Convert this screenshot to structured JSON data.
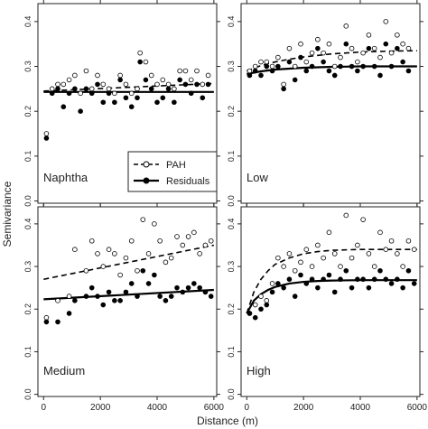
{
  "chart_data": {
    "type": "scatter",
    "xlabel": "Distance (m)",
    "ylabel": "Semivariance",
    "xlim": [
      -200,
      6100
    ],
    "ylim": [
      -0.005,
      0.44
    ],
    "x_ticks": [
      0,
      2000,
      4000,
      6000
    ],
    "y_ticks": [
      0.0,
      0.1,
      0.2,
      0.3,
      0.4
    ],
    "legend": {
      "placement": "inside Naphtha panel, top-right",
      "entries": [
        {
          "label": "PAH",
          "marker": "open-circle",
          "line": "dashed"
        },
        {
          "label": "Residuals",
          "marker": "filled-circle",
          "line": "solid"
        }
      ]
    },
    "panels": [
      {
        "label": "Naphtha",
        "series": [
          {
            "name": "PAH",
            "x": [
              100,
              300,
              500,
              700,
              900,
              1100,
              1300,
              1500,
              1700,
              1900,
              2100,
              2300,
              2500,
              2700,
              2900,
              3100,
              3300,
              3400,
              3600,
              3800,
              4000,
              4200,
              4400,
              4600,
              4800,
              5000,
              5200,
              5400,
              5600,
              5800
            ],
            "y": [
              0.15,
              0.25,
              0.26,
              0.26,
              0.27,
              0.28,
              0.24,
              0.29,
              0.25,
              0.28,
              0.26,
              0.25,
              0.24,
              0.28,
              0.26,
              0.24,
              0.25,
              0.33,
              0.31,
              0.28,
              0.26,
              0.27,
              0.26,
              0.25,
              0.29,
              0.29,
              0.27,
              0.29,
              0.26,
              0.28
            ]
          },
          {
            "name": "Residuals",
            "x": [
              100,
              300,
              500,
              700,
              900,
              1100,
              1300,
              1500,
              1700,
              1900,
              2100,
              2300,
              2500,
              2700,
              2900,
              3100,
              3300,
              3400,
              3600,
              3800,
              4000,
              4200,
              4400,
              4600,
              4800,
              5000,
              5200,
              5400,
              5600,
              5800
            ],
            "y": [
              0.14,
              0.24,
              0.25,
              0.21,
              0.24,
              0.25,
              0.2,
              0.25,
              0.24,
              0.26,
              0.22,
              0.24,
              0.22,
              0.27,
              0.23,
              0.21,
              0.23,
              0.31,
              0.27,
              0.25,
              0.22,
              0.23,
              0.25,
              0.22,
              0.27,
              0.26,
              0.24,
              0.26,
              0.23,
              0.26
            ]
          }
        ],
        "fits": {
          "PAH": {
            "x": [
              0,
              6000
            ],
            "y": [
              0.245,
              0.262
            ],
            "style": "dashed"
          },
          "Residuals": {
            "x": [
              0,
              6000
            ],
            "y": [
              0.243,
              0.243
            ],
            "style": "solid"
          }
        }
      },
      {
        "label": "Low",
        "series": [
          {
            "name": "PAH",
            "x": [
              100,
              300,
              500,
              700,
              900,
              1100,
              1300,
              1500,
              1700,
              1900,
              2100,
              2300,
              2500,
              2700,
              2900,
              3100,
              3300,
              3500,
              3700,
              3900,
              4100,
              4300,
              4500,
              4700,
              4900,
              5100,
              5300,
              5500,
              5700
            ],
            "y": [
              0.29,
              0.3,
              0.31,
              0.31,
              0.3,
              0.32,
              0.26,
              0.34,
              0.3,
              0.35,
              0.31,
              0.33,
              0.36,
              0.33,
              0.35,
              0.3,
              0.32,
              0.39,
              0.34,
              0.31,
              0.33,
              0.37,
              0.34,
              0.32,
              0.4,
              0.33,
              0.37,
              0.35,
              0.34
            ]
          },
          {
            "name": "Residuals",
            "x": [
              100,
              300,
              500,
              700,
              900,
              1100,
              1300,
              1500,
              1700,
              1900,
              2100,
              2300,
              2500,
              2700,
              2900,
              3100,
              3300,
              3500,
              3700,
              3900,
              4100,
              4300,
              4500,
              4700,
              4900,
              5100,
              5300,
              5500,
              5700
            ],
            "y": [
              0.28,
              0.29,
              0.28,
              0.3,
              0.29,
              0.3,
              0.25,
              0.31,
              0.27,
              0.32,
              0.29,
              0.3,
              0.34,
              0.31,
              0.29,
              0.28,
              0.3,
              0.35,
              0.3,
              0.29,
              0.3,
              0.34,
              0.3,
              0.28,
              0.35,
              0.3,
              0.34,
              0.31,
              0.29
            ]
          }
        ],
        "fits": {
          "PAH": {
            "x": [
              0,
              500,
              1000,
              1500,
              2000,
              3000,
              4000,
              5000,
              6000
            ],
            "y": [
              0.29,
              0.302,
              0.31,
              0.316,
              0.321,
              0.328,
              0.332,
              0.334,
              0.335
            ],
            "style": "dashed"
          },
          "Residuals": {
            "x": [
              0,
              500,
              1000,
              1500,
              2000,
              3000,
              4000,
              5000,
              6000
            ],
            "y": [
              0.283,
              0.289,
              0.293,
              0.295,
              0.297,
              0.299,
              0.3,
              0.3,
              0.3
            ],
            "style": "solid"
          }
        }
      },
      {
        "label": "Medium",
        "series": [
          {
            "name": "PAH",
            "x": [
              100,
              500,
              900,
              1100,
              1500,
              1700,
              1900,
              2100,
              2300,
              2500,
              2700,
              2900,
              3100,
              3300,
              3500,
              3700,
              3900,
              4100,
              4300,
              4500,
              4700,
              4900,
              5100,
              5300,
              5500,
              5700,
              5900
            ],
            "y": [
              0.18,
              0.22,
              0.23,
              0.34,
              0.29,
              0.36,
              0.33,
              0.3,
              0.34,
              0.33,
              0.28,
              0.32,
              0.36,
              0.29,
              0.41,
              0.33,
              0.4,
              0.36,
              0.31,
              0.32,
              0.37,
              0.35,
              0.37,
              0.38,
              0.33,
              0.35,
              0.36
            ]
          },
          {
            "name": "Residuals",
            "x": [
              100,
              500,
              900,
              1100,
              1500,
              1700,
              1900,
              2100,
              2300,
              2500,
              2700,
              2900,
              3100,
              3300,
              3500,
              3700,
              3900,
              4100,
              4300,
              4500,
              4700,
              4900,
              5100,
              5300,
              5500,
              5700,
              5900
            ],
            "y": [
              0.17,
              0.17,
              0.19,
              0.22,
              0.23,
              0.25,
              0.23,
              0.21,
              0.24,
              0.22,
              0.22,
              0.24,
              0.26,
              0.23,
              0.29,
              0.26,
              0.28,
              0.23,
              0.22,
              0.23,
              0.25,
              0.24,
              0.25,
              0.26,
              0.25,
              0.24,
              0.23
            ]
          }
        ],
        "fits": {
          "PAH": {
            "x": [
              0,
              6000
            ],
            "y": [
              0.27,
              0.35
            ],
            "style": "dashed"
          },
          "Residuals": {
            "x": [
              0,
              6000
            ],
            "y": [
              0.223,
              0.245
            ],
            "style": "solid"
          }
        }
      },
      {
        "label": "High",
        "series": [
          {
            "name": "PAH",
            "x": [
              100,
              300,
              500,
              700,
              900,
              1100,
              1300,
              1500,
              1700,
              1900,
              2100,
              2300,
              2500,
              2700,
              2900,
              3100,
              3300,
              3500,
              3700,
              3900,
              4100,
              4300,
              4500,
              4700,
              4900,
              5100,
              5300,
              5500,
              5700,
              5900
            ],
            "y": [
              0.19,
              0.21,
              0.23,
              0.22,
              0.26,
              0.32,
              0.3,
              0.33,
              0.29,
              0.31,
              0.34,
              0.3,
              0.35,
              0.32,
              0.38,
              0.33,
              0.3,
              0.42,
              0.32,
              0.35,
              0.41,
              0.33,
              0.3,
              0.38,
              0.34,
              0.36,
              0.33,
              0.3,
              0.36,
              0.34
            ]
          },
          {
            "name": "Residuals",
            "x": [
              100,
              300,
              500,
              700,
              900,
              1100,
              1300,
              1500,
              1700,
              1900,
              2100,
              2300,
              2500,
              2700,
              2900,
              3100,
              3300,
              3500,
              3700,
              3900,
              4100,
              4300,
              4500,
              4700,
              4900,
              5100,
              5300,
              5500,
              5700,
              5900
            ],
            "y": [
              0.19,
              0.18,
              0.2,
              0.21,
              0.24,
              0.26,
              0.25,
              0.27,
              0.23,
              0.28,
              0.26,
              0.27,
              0.25,
              0.27,
              0.28,
              0.24,
              0.27,
              0.29,
              0.25,
              0.27,
              0.27,
              0.25,
              0.27,
              0.29,
              0.27,
              0.26,
              0.27,
              0.25,
              0.29,
              0.26
            ]
          }
        ],
        "fits": {
          "PAH": {
            "x": [
              0,
              250,
              500,
              750,
              1000,
              1500,
              2000,
              2500,
              3000,
              4000,
              5000,
              6000
            ],
            "y": [
              0.19,
              0.24,
              0.27,
              0.29,
              0.305,
              0.32,
              0.33,
              0.335,
              0.338,
              0.34,
              0.34,
              0.34
            ],
            "style": "dashed"
          },
          "Residuals": {
            "x": [
              0,
              250,
              500,
              750,
              1000,
              1500,
              2000,
              2500,
              3000,
              4000,
              5000,
              6000
            ],
            "y": [
              0.19,
              0.22,
              0.235,
              0.245,
              0.252,
              0.26,
              0.264,
              0.266,
              0.267,
              0.268,
              0.268,
              0.268
            ],
            "style": "solid"
          }
        }
      }
    ]
  }
}
